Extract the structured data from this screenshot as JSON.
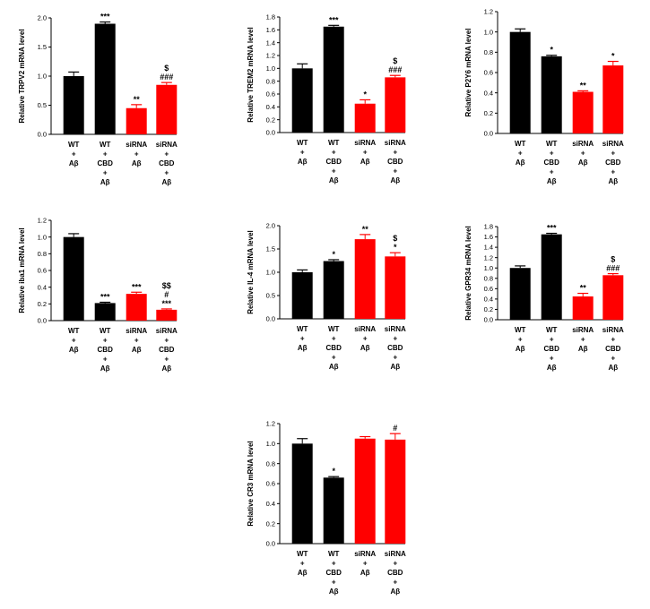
{
  "colors": {
    "control": "#000000",
    "sirna": "#ff0000",
    "axis": "#000000"
  },
  "category_labels": [
    [
      "WT",
      "+",
      "Aβ"
    ],
    [
      "WT",
      "+",
      "CBD",
      "+",
      "Aβ"
    ],
    [
      "siRNA",
      "+",
      "Aβ"
    ],
    [
      "siRNA",
      "+",
      "CBD",
      "+",
      "Aβ"
    ]
  ],
  "chart_data": [
    {
      "type": "bar",
      "title": "",
      "ylabel": "Relative TRPV2 mRNA level",
      "categories": [
        "WT + Aβ",
        "WT + CBD + Aβ",
        "siRNA + Aβ",
        "siRNA + CBD + Aβ"
      ],
      "values": [
        1.0,
        1.9,
        0.45,
        0.85
      ],
      "errors": [
        0.07,
        0.03,
        0.06,
        0.04
      ],
      "bar_colors": [
        "control",
        "control",
        "sirna",
        "sirna"
      ],
      "ylim": [
        0,
        2.0
      ],
      "yticks": [
        "0.0",
        "0.5",
        "1.0",
        "1.5",
        "2.0"
      ],
      "annotations": [
        [],
        [
          "***"
        ],
        [
          "**"
        ],
        [
          "###",
          "$"
        ]
      ]
    },
    {
      "type": "bar",
      "title": "",
      "ylabel": "Relative TREM2 mRNA level",
      "categories": [
        "WT + Aβ",
        "WT + CBD + Aβ",
        "siRNA + Aβ",
        "siRNA + CBD + Aβ"
      ],
      "values": [
        1.0,
        1.65,
        0.45,
        0.86
      ],
      "errors": [
        0.07,
        0.02,
        0.06,
        0.03
      ],
      "bar_colors": [
        "control",
        "control",
        "sirna",
        "sirna"
      ],
      "ylim": [
        0,
        1.8
      ],
      "yticks": [
        "0.0",
        "0.2",
        "0.4",
        "0.6",
        "0.8",
        "1.0",
        "1.2",
        "1.4",
        "1.6",
        "1.8"
      ],
      "annotations": [
        [],
        [
          "***"
        ],
        [
          "*"
        ],
        [
          "###",
          "$"
        ]
      ]
    },
    {
      "type": "bar",
      "title": "",
      "ylabel": "Relative P2Y6 mRNA level",
      "categories": [
        "WT + Aβ",
        "WT + CBD + Aβ",
        "siRNA + Aβ",
        "siRNA + CBD + Aβ"
      ],
      "values": [
        1.0,
        0.76,
        0.41,
        0.67
      ],
      "errors": [
        0.03,
        0.01,
        0.01,
        0.04
      ],
      "bar_colors": [
        "control",
        "control",
        "sirna",
        "sirna"
      ],
      "ylim": [
        0,
        1.2
      ],
      "yticks": [
        "0.0",
        "0.2",
        "0.4",
        "0.6",
        "0.8",
        "1.0",
        "1.2"
      ],
      "annotations": [
        [],
        [
          "*"
        ],
        [
          "**"
        ],
        [
          "*"
        ]
      ]
    },
    {
      "type": "bar",
      "title": "",
      "ylabel": "Relative iba1 mRNA level",
      "categories": [
        "WT + Aβ",
        "WT + CBD + Aβ",
        "siRNA + Aβ",
        "siRNA + CBD + Aβ"
      ],
      "values": [
        1.0,
        0.21,
        0.32,
        0.13
      ],
      "errors": [
        0.04,
        0.01,
        0.02,
        0.01
      ],
      "bar_colors": [
        "control",
        "control",
        "sirna",
        "sirna"
      ],
      "ylim": [
        0,
        1.2
      ],
      "yticks": [
        "0.0",
        "0.2",
        "0.4",
        "0.6",
        "0.8",
        "1.0",
        "1.2"
      ],
      "annotations": [
        [],
        [
          "***"
        ],
        [
          "***"
        ],
        [
          "***",
          "#",
          "$$"
        ]
      ]
    },
    {
      "type": "bar",
      "title": "",
      "ylabel": "Relative IL-4 mRNA level",
      "categories": [
        "WT + Aβ",
        "WT + CBD + Aβ",
        "siRNA + Aβ",
        "siRNA + CBD + Aβ"
      ],
      "values": [
        1.0,
        1.24,
        1.71,
        1.34
      ],
      "errors": [
        0.05,
        0.03,
        0.1,
        0.08
      ],
      "bar_colors": [
        "control",
        "control",
        "sirna",
        "sirna"
      ],
      "ylim": [
        0,
        2.0
      ],
      "yticks": [
        "0.0",
        "0.5",
        "1.0",
        "1.5",
        "2.0"
      ],
      "annotations": [
        [],
        [
          "*"
        ],
        [
          "**"
        ],
        [
          "*",
          "$"
        ]
      ]
    },
    {
      "type": "bar",
      "title": "",
      "ylabel": "Relative GPR34 mRNA level",
      "categories": [
        "WT + Aβ",
        "WT + CBD + Aβ",
        "siRNA + Aβ",
        "siRNA + CBD + Aβ"
      ],
      "values": [
        1.0,
        1.65,
        0.45,
        0.86
      ],
      "errors": [
        0.04,
        0.02,
        0.06,
        0.03
      ],
      "bar_colors": [
        "control",
        "control",
        "sirna",
        "sirna"
      ],
      "ylim": [
        0,
        1.8
      ],
      "yticks": [
        "0.0",
        "0.2",
        "0.4",
        "0.6",
        "0.8",
        "1.0",
        "1.2",
        "1.4",
        "1.6",
        "1.8"
      ],
      "annotations": [
        [],
        [
          "***"
        ],
        [
          "**"
        ],
        [
          "###",
          "$"
        ]
      ]
    },
    {
      "type": "bar",
      "title": "",
      "ylabel": "Relative CR3 mRNA level",
      "categories": [
        "WT + Aβ",
        "WT + CBD + Aβ",
        "siRNA + Aβ",
        "siRNA + CBD + Aβ"
      ],
      "values": [
        1.0,
        0.66,
        1.05,
        1.04
      ],
      "errors": [
        0.05,
        0.01,
        0.02,
        0.06
      ],
      "bar_colors": [
        "control",
        "control",
        "sirna",
        "sirna"
      ],
      "ylim": [
        0,
        1.2
      ],
      "yticks": [
        "0.0",
        "0.2",
        "0.4",
        "0.6",
        "0.8",
        "1.0",
        "1.2"
      ],
      "annotations": [
        [],
        [
          "*"
        ],
        [],
        [
          "#"
        ]
      ]
    }
  ]
}
